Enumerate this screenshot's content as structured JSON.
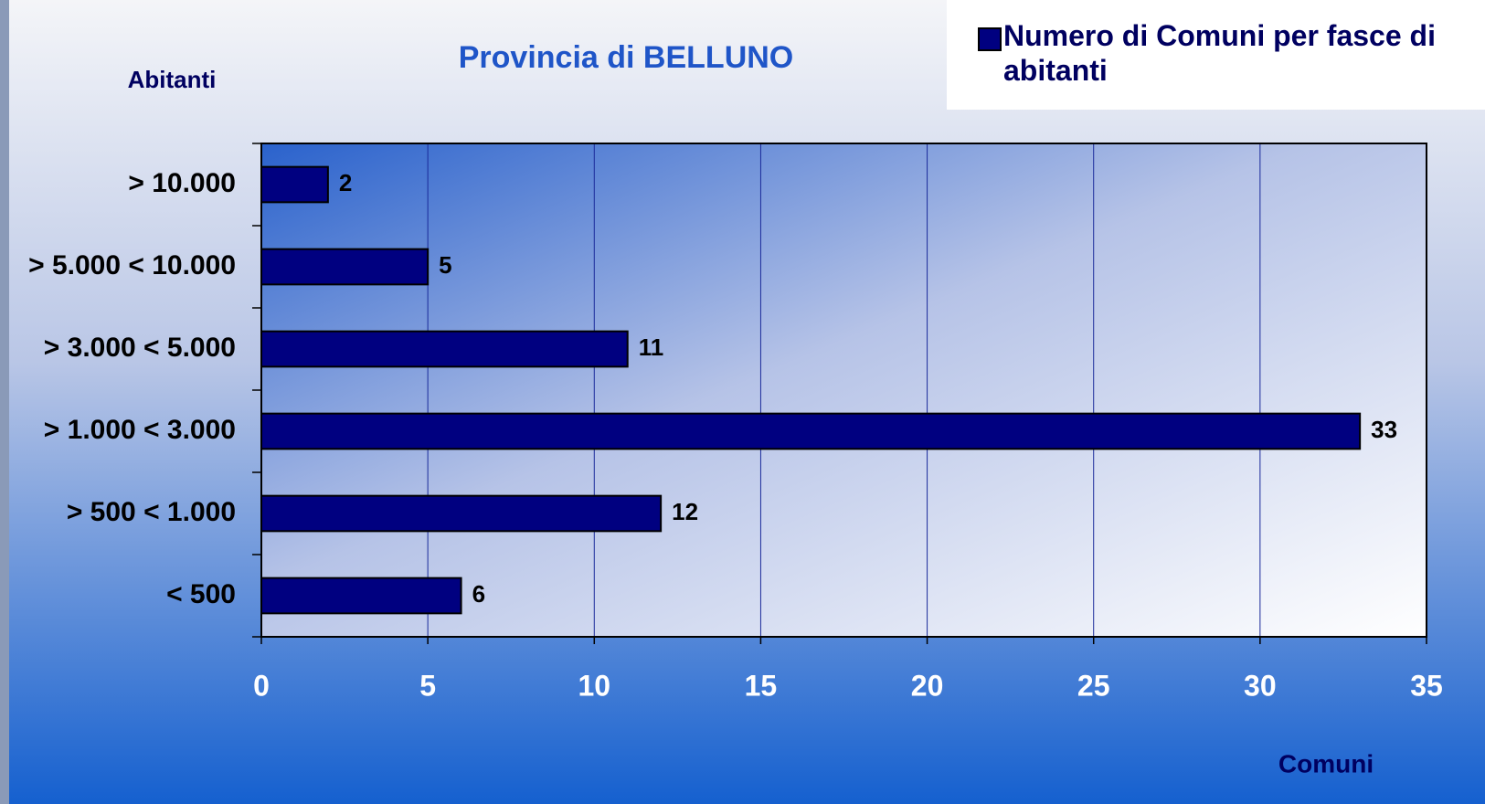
{
  "chart_data": {
    "type": "bar",
    "orientation": "horizontal",
    "title": "Provincia di  BELLUNO",
    "y_axis_label": "Abitanti",
    "x_axis_label": "Comuni",
    "categories": [
      "> 10.000",
      "> 5.000 < 10.000",
      "> 3.000 < 5.000",
      "> 1.000 < 3.000",
      "> 500 < 1.000",
      "< 500"
    ],
    "series": [
      {
        "name": "Numero di Comuni per fasce di abitanti",
        "color": "#000080",
        "values": [
          2,
          5,
          11,
          33,
          12,
          6
        ]
      }
    ],
    "xlim": [
      0,
      35
    ],
    "xticks": [
      0,
      5,
      10,
      15,
      20,
      25,
      30,
      35
    ],
    "grid": true,
    "legend": "top-right"
  }
}
